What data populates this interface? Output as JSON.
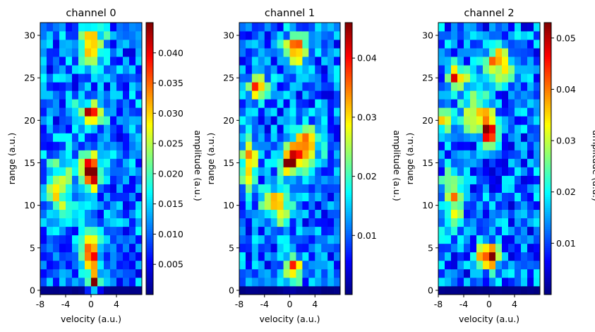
{
  "chart_data": [
    {
      "type": "heatmap",
      "title": "channel 0",
      "xlabel": "velocity (a.u.)",
      "ylabel": "range (a.u.)",
      "colorbar_label": "amplitude (a.u.)",
      "colormap": "jet",
      "xlim": [
        -8,
        8
      ],
      "ylim": [
        -0.5,
        31.5
      ],
      "x_ticks": [
        -8,
        -4,
        0,
        4
      ],
      "x_tick_labels": [
        "-8",
        "-4",
        "0",
        "4"
      ],
      "y_ticks": [
        0,
        5,
        10,
        15,
        20,
        25,
        30
      ],
      "y_tick_labels": [
        "0",
        "5",
        "10",
        "15",
        "20",
        "25",
        "30"
      ],
      "grid_size": [
        32,
        16
      ],
      "value_range": [
        0.0,
        0.045
      ],
      "colorbar_ticks": [
        0.005,
        0.01,
        0.015,
        0.02,
        0.025,
        0.03,
        0.035,
        0.04
      ],
      "colorbar_tick_labels": [
        "0.005",
        "0.010",
        "0.015",
        "0.020",
        "0.025",
        "0.030",
        "0.035",
        "0.040"
      ],
      "seed": 11,
      "noise_level": 0.013,
      "zero_row": true,
      "peaks": [
        {
          "v": 0.5,
          "r": 1,
          "amp": 0.045,
          "sv": 0.7,
          "sr": 0.7
        },
        {
          "v": 0,
          "r": 4.5,
          "amp": 0.036,
          "sv": 0.9,
          "sr": 1.4
        },
        {
          "v": 0,
          "r": 14,
          "amp": 0.045,
          "sv": 1.1,
          "sr": 1.3
        },
        {
          "v": 0,
          "r": 21,
          "amp": 0.032,
          "sv": 1.4,
          "sr": 0.8
        },
        {
          "v": 0,
          "r": 29,
          "amp": 0.022,
          "sv": 1.5,
          "sr": 1.5
        },
        {
          "v": -5,
          "r": 12,
          "amp": 0.018,
          "sv": 1.4,
          "sr": 2.5
        }
      ]
    },
    {
      "type": "heatmap",
      "title": "channel 1",
      "xlabel": "velocity (a.u.)",
      "ylabel": "range (a.u.)",
      "colorbar_label": "amplitude (a.u.)",
      "colormap": "jet",
      "xlim": [
        -8,
        8
      ],
      "ylim": [
        -0.5,
        31.5
      ],
      "x_ticks": [
        -8,
        -4,
        0,
        4
      ],
      "x_tick_labels": [
        "-8",
        "-4",
        "0",
        "4"
      ],
      "y_ticks": [
        0,
        5,
        10,
        15,
        20,
        25,
        30
      ],
      "y_tick_labels": [
        "0",
        "5",
        "10",
        "15",
        "20",
        "25",
        "30"
      ],
      "grid_size": [
        32,
        16
      ],
      "value_range": [
        0.0,
        0.046
      ],
      "colorbar_ticks": [
        0.01,
        0.02,
        0.03,
        0.04
      ],
      "colorbar_tick_labels": [
        "0.01",
        "0.02",
        "0.03",
        "0.04"
      ],
      "seed": 23,
      "noise_level": 0.013,
      "zero_row": true,
      "peaks": [
        {
          "v": 0,
          "r": 15,
          "amp": 0.046,
          "sv": 0.9,
          "sr": 1.0
        },
        {
          "v": 2.5,
          "r": 17,
          "amp": 0.032,
          "sv": 1.5,
          "sr": 1.5
        },
        {
          "v": -5,
          "r": 24,
          "amp": 0.03,
          "sv": 1.0,
          "sr": 0.8
        },
        {
          "v": -2,
          "r": 10,
          "amp": 0.024,
          "sv": 1.5,
          "sr": 1.5
        },
        {
          "v": 0.5,
          "r": 2.5,
          "amp": 0.03,
          "sv": 1.0,
          "sr": 1.0
        },
        {
          "v": 1,
          "r": 28.5,
          "amp": 0.03,
          "sv": 1.2,
          "sr": 1.2
        },
        {
          "v": -6.5,
          "r": 15,
          "amp": 0.025,
          "sv": 0.8,
          "sr": 2.0
        }
      ]
    },
    {
      "type": "heatmap",
      "title": "channel 2",
      "xlabel": "velocity (a.u.)",
      "ylabel": "range (a.u.)",
      "colorbar_label": "amplitude (a.u.)",
      "colormap": "jet",
      "xlim": [
        -8,
        8
      ],
      "ylim": [
        -0.5,
        31.5
      ],
      "x_ticks": [
        -8,
        -4,
        0,
        4
      ],
      "x_tick_labels": [
        "-8",
        "-4",
        "0",
        "4"
      ],
      "y_ticks": [
        0,
        5,
        10,
        15,
        20,
        25,
        30
      ],
      "y_tick_labels": [
        "0",
        "5",
        "10",
        "15",
        "20",
        "25",
        "30"
      ],
      "grid_size": [
        32,
        16
      ],
      "value_range": [
        0.0,
        0.053
      ],
      "colorbar_ticks": [
        0.01,
        0.02,
        0.03,
        0.04,
        0.05
      ],
      "colorbar_tick_labels": [
        "0.01",
        "0.02",
        "0.03",
        "0.04",
        "0.05"
      ],
      "seed": 37,
      "noise_level": 0.016,
      "zero_row": true,
      "peaks": [
        {
          "v": 0,
          "r": 4,
          "amp": 0.053,
          "sv": 1.1,
          "sr": 0.9
        },
        {
          "v": 0,
          "r": 18.5,
          "amp": 0.04,
          "sv": 0.9,
          "sr": 1.2
        },
        {
          "v": -2,
          "r": 21,
          "amp": 0.03,
          "sv": 1.4,
          "sr": 1.4
        },
        {
          "v": -5,
          "r": 25,
          "amp": 0.03,
          "sv": 1.2,
          "sr": 1.0
        },
        {
          "v": -7,
          "r": 20.5,
          "amp": 0.03,
          "sv": 0.8,
          "sr": 1.0
        },
        {
          "v": 1.5,
          "r": 27,
          "amp": 0.028,
          "sv": 1.5,
          "sr": 1.5
        },
        {
          "v": -5.5,
          "r": 11,
          "amp": 0.022,
          "sv": 1.2,
          "sr": 2.5
        }
      ]
    }
  ]
}
